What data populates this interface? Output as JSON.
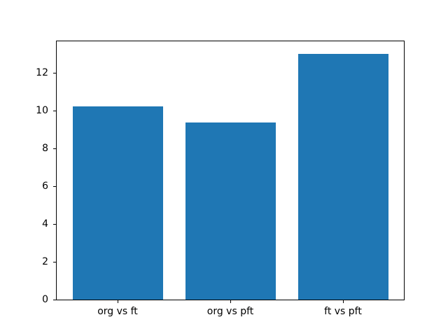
{
  "chart_data": {
    "type": "bar",
    "categories": [
      "org vs ft",
      "org vs pft",
      "ft vs pft"
    ],
    "x": [
      0,
      1,
      2
    ],
    "values": [
      10.2,
      9.35,
      13.0
    ],
    "bar_width": 0.8,
    "bar_color": "#1f77b4",
    "title": "",
    "xlabel": "",
    "ylabel": "",
    "xlim": [
      -0.54,
      2.54
    ],
    "ylim": [
      0,
      13.65
    ],
    "yticks": [
      0,
      2,
      4,
      6,
      8,
      10,
      12
    ],
    "grid": false,
    "legend": null,
    "background_color": "#ffffff",
    "spine_color": "#000000"
  }
}
